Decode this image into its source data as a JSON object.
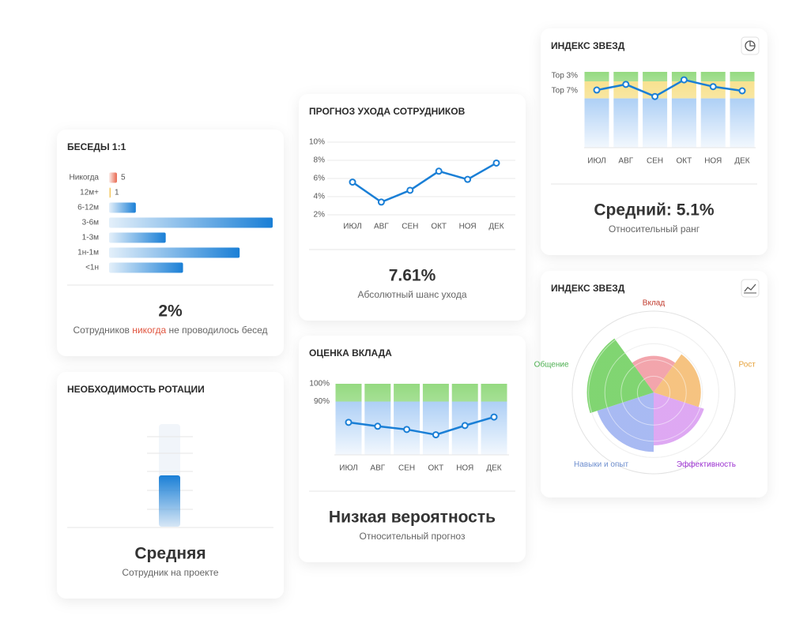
{
  "chart_data": [
    {
      "type": "bar",
      "orientation": "horizontal",
      "title": "БЕСЕДЫ 1:1",
      "categories": [
        "Никогда",
        "12м+",
        "6-12м",
        "3-6м",
        "1-3м",
        "1н-1м",
        "<1н"
      ],
      "values": [
        5,
        1,
        17,
        104,
        36,
        83,
        47
      ],
      "value_labels": [
        "5",
        "1",
        null,
        null,
        null,
        null,
        null
      ],
      "colors": [
        "#e8674e",
        "#f0b429",
        "#1a7fd6",
        "#1a7fd6",
        "#1a7fd6",
        "#1a7fd6",
        "#1a7fd6"
      ],
      "summary": "2%",
      "caption": [
        {
          "text": "Сотрудников "
        },
        {
          "text": "никогда",
          "color": "#e0533d"
        },
        {
          "text": " не проводилось бесед"
        }
      ]
    },
    {
      "type": "gauge",
      "title": "НЕОБХОДИМОСТЬ РОТАЦИИ",
      "value": 50,
      "ylim": [
        0,
        100
      ],
      "color": "#1a7fd6",
      "summary": "Средняя",
      "caption": "Сотрудник на проекте"
    },
    {
      "type": "line",
      "title": "ПРОГНОЗ УХОДА СОТРУДНИКОВ",
      "categories": [
        "ИЮЛ",
        "АВГ",
        "СЕН",
        "ОКТ",
        "НОЯ",
        "ДЕК"
      ],
      "values": [
        5.6,
        3.4,
        4.7,
        6.8,
        5.9,
        7.7
      ],
      "color": "#1a7fd6",
      "ylim": [
        2,
        10
      ],
      "yticks": [
        {
          "value": 2,
          "label": "2%"
        },
        {
          "value": 4,
          "label": "4%"
        },
        {
          "value": 6,
          "label": "6%"
        },
        {
          "value": 8,
          "label": "8%"
        },
        {
          "value": 10,
          "label": "10%"
        }
      ],
      "grid": true,
      "summary": "7.61%",
      "caption": "Абсолютный шанс ухода"
    },
    {
      "type": "line",
      "title": "ОЦЕНКА ВКЛАДА",
      "categories": [
        "ИЮЛ",
        "АВГ",
        "СЕН",
        "ОКТ",
        "НОЯ",
        "ДЕК"
      ],
      "values": [
        78.3,
        76.1,
        74.3,
        71.3,
        76.5,
        81.3
      ],
      "color": "#1a7fd6",
      "ylim": [
        60,
        100
      ],
      "yticks": [
        {
          "value": 100,
          "label": "100%"
        },
        {
          "value": 90,
          "label": "90%"
        }
      ],
      "bands": [
        {
          "from": 90,
          "to": 100,
          "color": "#8fd87a"
        },
        {
          "from": 60,
          "to": 90,
          "color": "#a9cdf5"
        }
      ],
      "summary": "Низкая вероятность",
      "caption": "Относительный прогноз"
    },
    {
      "type": "line",
      "title": "ИНДЕКС ЗВЕЗД",
      "categories": [
        "ИЮЛ",
        "АВГ",
        "СЕН",
        "ОКТ",
        "НОЯ",
        "ДЕК"
      ],
      "values": [
        6.8,
        5.3,
        8.5,
        4.1,
        5.9,
        7.0
      ],
      "color": "#1a7fd6",
      "ylim": [
        22,
        2
      ],
      "yticks": [
        {
          "value": 3,
          "label": "Top 3%"
        },
        {
          "value": 7,
          "label": "Top 7%"
        }
      ],
      "bands": [
        {
          "from": 2,
          "to": 4.5,
          "color": "#8fd87a"
        },
        {
          "from": 4.5,
          "to": 9,
          "color": "#f7e08a"
        },
        {
          "from": 9,
          "to": 22,
          "color": "#a9cdf5"
        }
      ],
      "summary": "Средний: 5.1%",
      "caption": "Относительный ранг"
    },
    {
      "type": "polar",
      "title": "ИНДЕКС ЗВЕЗД",
      "categories": [
        "Вклад",
        "Рост",
        "Эффективность",
        "Навыки и опыт",
        "Общение"
      ],
      "values": [
        45,
        58,
        65,
        73,
        82
      ],
      "rlim": [
        0,
        100
      ],
      "colors": [
        "#f2a0a8",
        "#f5c07a",
        "#dca4f2",
        "#a4b6f2",
        "#7ad36a"
      ],
      "label_colors": [
        "#c0392b",
        "#e6a23c",
        "#9b30d0",
        "#6f8fcf",
        "#4caf50"
      ]
    }
  ]
}
